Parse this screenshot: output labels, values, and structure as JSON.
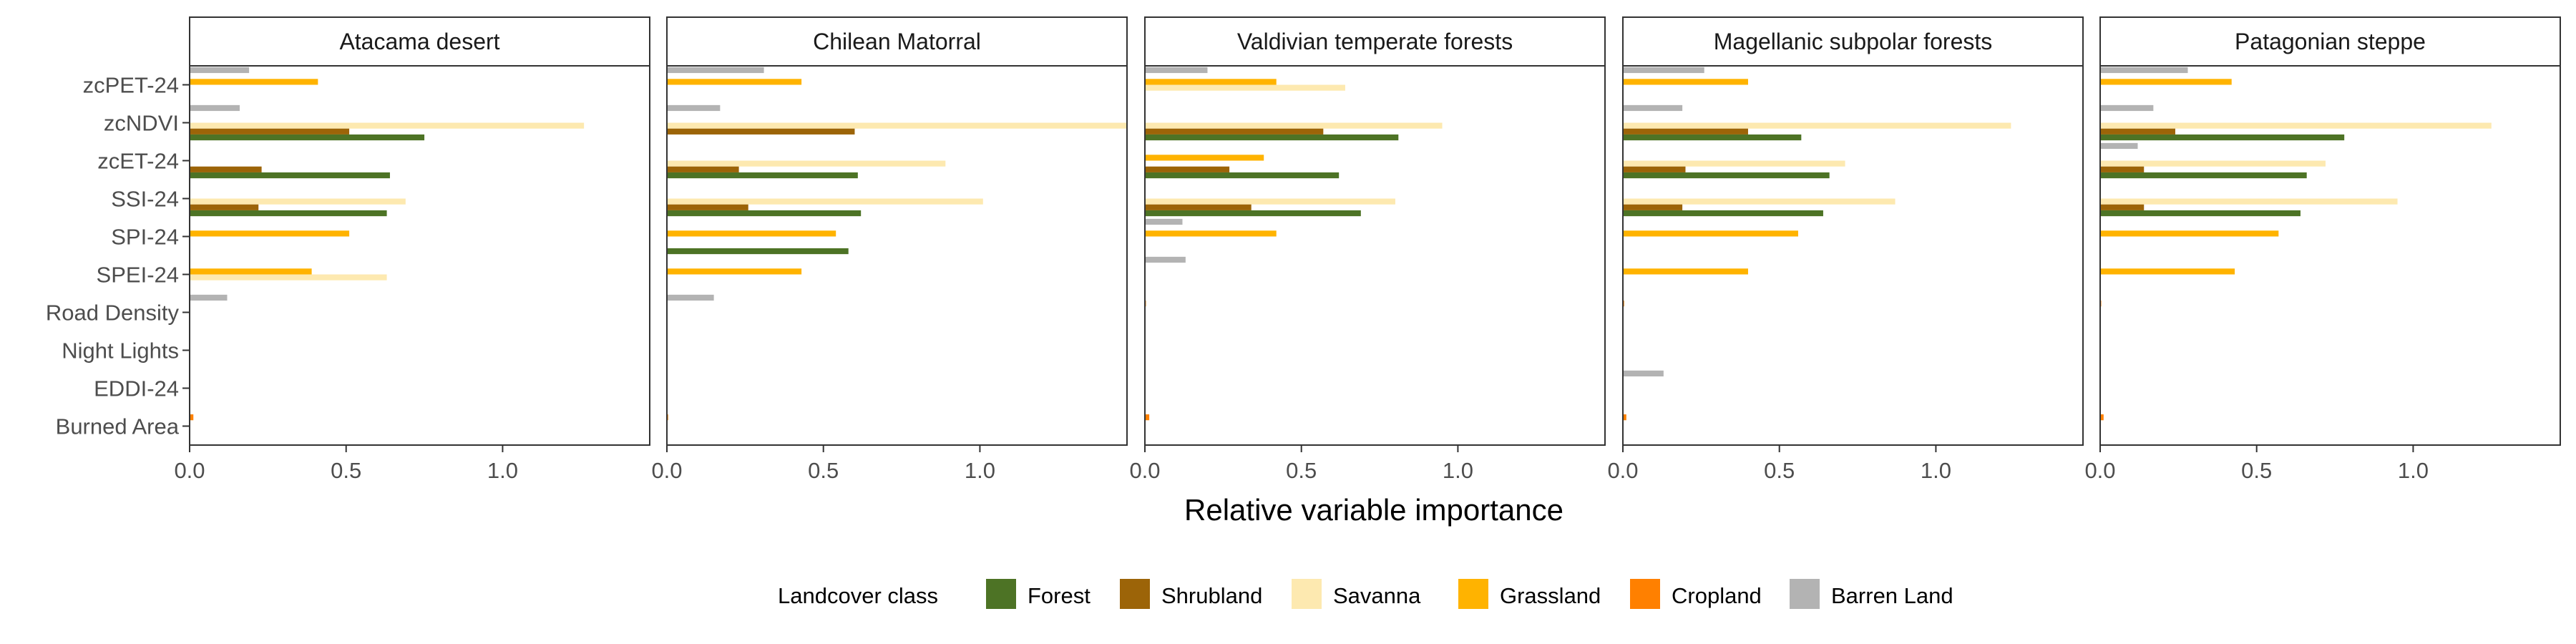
{
  "chart_data": {
    "type": "bar",
    "orientation": "horizontal",
    "xlabel": "Relative variable importance",
    "ylabel": "",
    "xlim": [
      0,
      1.47
    ],
    "xticks": [
      0.0,
      0.5,
      1.0
    ],
    "xtick_labels": [
      "0.0",
      "0.5",
      "1.0"
    ],
    "grid": false,
    "legend": {
      "title": "Landcover class",
      "position": "bottom"
    },
    "categories": [
      "zcPET-24",
      "zcNDVI",
      "zcET-24",
      "SSI-24",
      "SPI-24",
      "SPEI-24",
      "Road Density",
      "Night Lights",
      "EDDI-24",
      "Burned Area"
    ],
    "series_order": [
      "Barren Land",
      "Cropland",
      "Grassland",
      "Savanna",
      "Shrubland",
      "Forest"
    ],
    "legend_order": [
      "Forest",
      "Shrubland",
      "Savanna",
      "Grassland",
      "Cropland",
      "Barren Land"
    ],
    "series_colors": {
      "Forest": "#4d7325",
      "Shrubland": "#9c6408",
      "Savanna": "#fde9b0",
      "Grassland": "#ffb300",
      "Cropland": "#ff8000",
      "Barren Land": "#b3b3b3"
    },
    "panels": [
      {
        "title": "Atacama desert",
        "values": {
          "zcPET-24": {
            "Barren Land": 0.19,
            "Grassland": 0.41,
            "Shrubland": 0.0,
            "Forest": 0.0
          },
          "zcNDVI": {
            "Barren Land": 0.16,
            "Savanna": 1.26,
            "Shrubland": 0.51,
            "Forest": 0.75
          },
          "zcET-24": {
            "Shrubland": 0.23,
            "Forest": 0.64
          },
          "SSI-24": {
            "Savanna": 0.69,
            "Shrubland": 0.22,
            "Forest": 0.63
          },
          "SPI-24": {
            "Grassland": 0.51
          },
          "SPEI-24": {
            "Grassland": 0.39,
            "Savanna": 0.63
          },
          "Road Density": {
            "Barren Land": 0.12
          },
          "Night Lights": {},
          "EDDI-24": {},
          "Burned Area": {
            "Cropland": 0.012
          }
        }
      },
      {
        "title": "Chilean Matorral",
        "values": {
          "zcPET-24": {
            "Barren Land": 0.31,
            "Grassland": 0.43
          },
          "zcNDVI": {
            "Barren Land": 0.17,
            "Savanna": 1.47,
            "Shrubland": 0.6
          },
          "zcET-24": {
            "Savanna": 0.89,
            "Shrubland": 0.23,
            "Forest": 0.61
          },
          "SSI-24": {
            "Savanna": 1.01,
            "Shrubland": 0.26,
            "Forest": 0.62
          },
          "SPI-24": {
            "Grassland": 0.54,
            "Forest": 0.58
          },
          "SPEI-24": {
            "Grassland": 0.43
          },
          "Road Density": {
            "Barren Land": 0.15
          },
          "Night Lights": {},
          "EDDI-24": {},
          "Burned Area": {
            "Cropland": 0.004
          }
        }
      },
      {
        "title": "Valdivian temperate forests",
        "values": {
          "zcPET-24": {
            "Barren Land": 0.2,
            "Grassland": 0.42,
            "Savanna": 0.64
          },
          "zcNDVI": {
            "Savanna": 0.95,
            "Shrubland": 0.57,
            "Forest": 0.81
          },
          "zcET-24": {
            "Grassland": 0.38,
            "Shrubland": 0.27,
            "Forest": 0.62
          },
          "SSI-24": {
            "Savanna": 0.8,
            "Shrubland": 0.34,
            "Forest": 0.69
          },
          "SPI-24": {
            "Barren Land": 0.12,
            "Grassland": 0.42
          },
          "SPEI-24": {
            "Barren Land": 0.13
          },
          "Road Density": {
            "Cropland": 0.003
          },
          "Night Lights": {},
          "EDDI-24": {},
          "Burned Area": {
            "Cropland": 0.014
          }
        }
      },
      {
        "title": "Magellanic subpolar forests",
        "values": {
          "zcPET-24": {
            "Barren Land": 0.26,
            "Grassland": 0.4
          },
          "zcNDVI": {
            "Barren Land": 0.19,
            "Savanna": 1.24,
            "Shrubland": 0.4,
            "Forest": 0.57
          },
          "zcET-24": {
            "Savanna": 0.71,
            "Shrubland": 0.2,
            "Forest": 0.66
          },
          "SSI-24": {
            "Savanna": 0.87,
            "Shrubland": 0.19,
            "Forest": 0.64
          },
          "SPI-24": {
            "Grassland": 0.56
          },
          "SPEI-24": {
            "Grassland": 0.4
          },
          "Road Density": {
            "Cropland": 0.004
          },
          "Night Lights": {},
          "EDDI-24": {
            "Barren Land": 0.13
          },
          "Burned Area": {
            "Cropland": 0.011
          }
        }
      },
      {
        "title": "Patagonian steppe",
        "values": {
          "zcPET-24": {
            "Barren Land": 0.28,
            "Grassland": 0.42
          },
          "zcNDVI": {
            "Barren Land": 0.17,
            "Savanna": 1.25,
            "Shrubland": 0.24,
            "Forest": 0.78
          },
          "zcET-24": {
            "Barren Land": 0.12,
            "Savanna": 0.72,
            "Shrubland": 0.14,
            "Forest": 0.66
          },
          "SSI-24": {
            "Savanna": 0.95,
            "Shrubland": 0.14,
            "Forest": 0.64
          },
          "SPI-24": {
            "Grassland": 0.57
          },
          "SPEI-24": {
            "Grassland": 0.43
          },
          "Road Density": {
            "Cropland": 0.003
          },
          "Night Lights": {},
          "EDDI-24": {},
          "Burned Area": {
            "Cropland": 0.011
          }
        }
      }
    ]
  }
}
